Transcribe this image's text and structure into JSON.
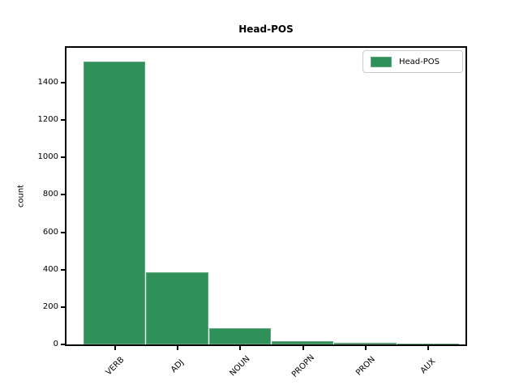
{
  "chart_data": {
    "type": "bar",
    "title": "Head-POS",
    "xlabel": "",
    "ylabel": "count",
    "categories": [
      "VERB",
      "ADJ",
      "NOUN",
      "PROPN",
      "PRON",
      "AUX"
    ],
    "values": [
      1510,
      385,
      85,
      16,
      8,
      3
    ],
    "ylim": [
      0,
      1590
    ],
    "yticks": [
      0,
      200,
      400,
      600,
      800,
      1000,
      1200,
      1400
    ],
    "x_tick_rotation": 45,
    "grid": false,
    "legend": {
      "position": "upper-right",
      "label": "Head-POS"
    },
    "colors": {
      "bar_fill": "#2f9159",
      "bar_edge": "#5aa87b",
      "axis": "#000000",
      "legend_border": "#cccccc",
      "text": "#000000"
    }
  }
}
